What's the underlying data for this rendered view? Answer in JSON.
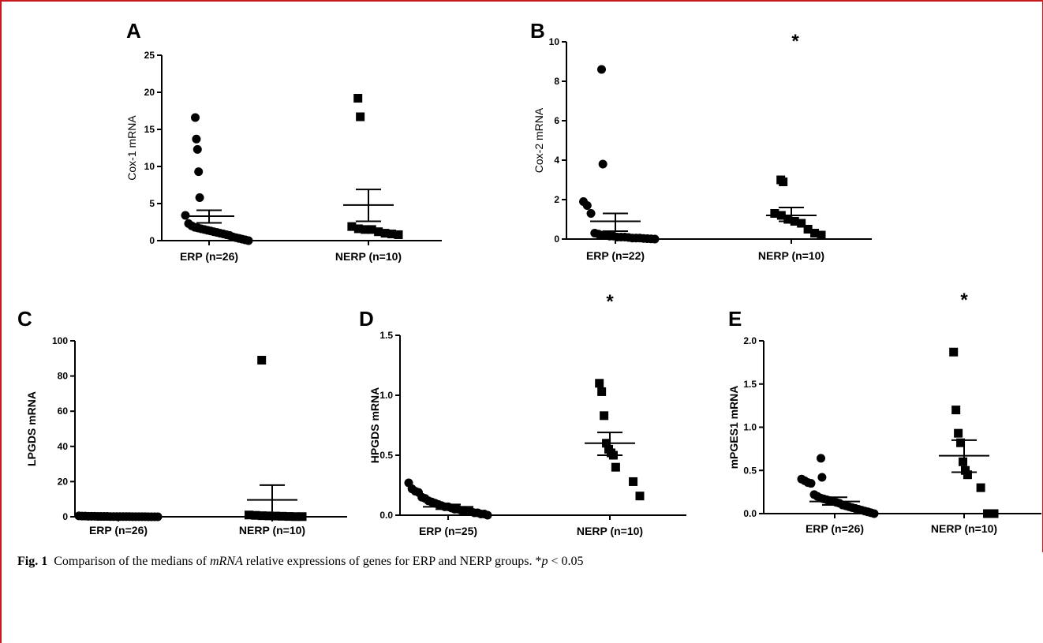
{
  "caption": {
    "label": "Fig. 1",
    "text_before": "Comparison of the medians of",
    "italic": "mRNA",
    "text_after": "relative expressions of genes for ERP and NERP groups. *",
    "p_symbol": "p",
    "p_rest": "< 0.05"
  },
  "chart_data": [
    {
      "panel": "A",
      "type": "scatter",
      "ylabel": "Cox-1 mRNA",
      "ylabel_bold": false,
      "ylim": [
        0,
        25
      ],
      "yticks": [
        0,
        5,
        10,
        15,
        20,
        25
      ],
      "ytick_labels": [
        "0",
        "5",
        "10",
        "15",
        "20",
        "25"
      ],
      "categories": [
        "ERP (n=26)",
        "NERP (n=10)"
      ],
      "series": [
        {
          "marker": "circle",
          "values": [
            16.6,
            13.7,
            12.3,
            9.3,
            5.8,
            3.4,
            2.3,
            2.0,
            1.8,
            1.7,
            1.6,
            1.5,
            1.4,
            1.3,
            1.2,
            1.1,
            1.0,
            0.9,
            0.8,
            0.7,
            0.5,
            0.4,
            0.3,
            0.2,
            0.1,
            0.0
          ],
          "mean": 3.3,
          "sem_low": 2.4,
          "sem_high": 4.1
        },
        {
          "marker": "square",
          "values": [
            19.2,
            16.7,
            1.9,
            1.6,
            1.5,
            1.5,
            1.2,
            1.0,
            0.9,
            0.8
          ],
          "mean": 4.8,
          "sem_low": 2.6,
          "sem_high": 6.9
        }
      ],
      "significance": ""
    },
    {
      "panel": "B",
      "type": "scatter",
      "ylabel": "Cox-2 mRNA",
      "ylabel_bold": false,
      "ylim": [
        0,
        10
      ],
      "yticks": [
        0,
        2,
        4,
        6,
        8,
        10
      ],
      "ytick_labels": [
        "0",
        "2",
        "4",
        "6",
        "8",
        "10"
      ],
      "categories": [
        "ERP (n=22)",
        "NERP (n=10)"
      ],
      "series": [
        {
          "marker": "circle",
          "values": [
            8.6,
            3.8,
            1.9,
            1.7,
            1.3,
            0.3,
            0.25,
            0.2,
            0.2,
            0.15,
            0.15,
            0.1,
            0.1,
            0.1,
            0.08,
            0.05,
            0.05,
            0.05,
            0.03,
            0.02,
            0.01,
            0.0
          ],
          "mean": 0.9,
          "sem_low": 0.4,
          "sem_high": 1.3
        },
        {
          "marker": "square",
          "values": [
            3.0,
            2.9,
            1.3,
            1.2,
            1.0,
            0.9,
            0.8,
            0.5,
            0.3,
            0.2
          ],
          "mean": 1.2,
          "sem_low": 0.9,
          "sem_high": 1.6
        }
      ],
      "significance": "*"
    },
    {
      "panel": "C",
      "type": "scatter",
      "ylabel": "LPGDS mRNA",
      "ylabel_bold": true,
      "ylim": [
        0,
        100
      ],
      "yticks": [
        0,
        20,
        40,
        60,
        80,
        100
      ],
      "ytick_labels": [
        "0",
        "20",
        "40",
        "60",
        "80",
        "100"
      ],
      "categories": [
        "ERP (n=26)",
        "NERP (n=10)"
      ],
      "series": [
        {
          "marker": "circle",
          "values": [
            0.5,
            0.4,
            0.4,
            0.3,
            0.3,
            0.3,
            0.2,
            0.2,
            0.2,
            0.2,
            0.1,
            0.1,
            0.1,
            0.1,
            0.1,
            0.1,
            0.1,
            0.05,
            0.05,
            0.05,
            0.05,
            0.05,
            0.02,
            0.02,
            0.01,
            0.0
          ],
          "mean": 0.2,
          "sem_low": 0.1,
          "sem_high": 0.3
        },
        {
          "marker": "square",
          "values": [
            89,
            1.0,
            0.8,
            0.6,
            0.5,
            0.4,
            0.3,
            0.2,
            0.1,
            0.1
          ],
          "mean": 9.6,
          "sem_low": 1.0,
          "sem_high": 18.0
        }
      ],
      "significance": ""
    },
    {
      "panel": "D",
      "type": "scatter",
      "ylabel": "HPGDS mRNA",
      "ylabel_bold": true,
      "ylim": [
        0,
        1.5
      ],
      "yticks": [
        0,
        0.5,
        1.0,
        1.5
      ],
      "ytick_labels": [
        "0.0",
        "0.5",
        "1.0",
        "1.5"
      ],
      "categories": [
        "ERP (n=25)",
        "NERP (n=10)"
      ],
      "series": [
        {
          "marker": "circle",
          "values": [
            0.27,
            0.22,
            0.2,
            0.19,
            0.15,
            0.14,
            0.12,
            0.11,
            0.1,
            0.09,
            0.08,
            0.07,
            0.07,
            0.06,
            0.05,
            0.05,
            0.04,
            0.04,
            0.03,
            0.03,
            0.02,
            0.02,
            0.01,
            0.01,
            0.0
          ],
          "mean": 0.07,
          "sem_low": 0.05,
          "sem_high": 0.09
        },
        {
          "marker": "square",
          "values": [
            1.1,
            1.03,
            0.83,
            0.6,
            0.55,
            0.52,
            0.5,
            0.4,
            0.28,
            0.16
          ],
          "mean": 0.6,
          "sem_low": 0.5,
          "sem_high": 0.69
        }
      ],
      "significance": "*"
    },
    {
      "panel": "E",
      "type": "scatter",
      "ylabel": "mPGES1 mRNA",
      "ylabel_bold": true,
      "ylim": [
        0,
        2.0
      ],
      "yticks": [
        0,
        0.5,
        1.0,
        1.5,
        2.0
      ],
      "ytick_labels": [
        "0.0",
        "0.5",
        "1.0",
        "1.5",
        "2.0"
      ],
      "categories": [
        "ERP (n=26)",
        "NERP (n=10)"
      ],
      "series": [
        {
          "marker": "circle",
          "values": [
            0.64,
            0.42,
            0.4,
            0.38,
            0.36,
            0.35,
            0.22,
            0.2,
            0.18,
            0.17,
            0.16,
            0.15,
            0.14,
            0.13,
            0.12,
            0.1,
            0.09,
            0.08,
            0.07,
            0.06,
            0.05,
            0.04,
            0.03,
            0.02,
            0.01,
            0.0
          ],
          "mean": 0.14,
          "sem_low": 0.1,
          "sem_high": 0.19
        },
        {
          "marker": "square",
          "values": [
            1.87,
            1.2,
            0.93,
            0.82,
            0.6,
            0.5,
            0.45,
            0.3,
            0.0,
            0.0
          ],
          "mean": 0.67,
          "sem_low": 0.48,
          "sem_high": 0.85
        }
      ],
      "significance": "*"
    }
  ]
}
